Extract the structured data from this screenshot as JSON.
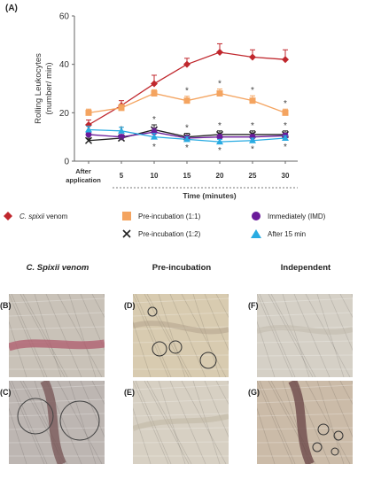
{
  "panel_a_label": "(A)",
  "chart_data": {
    "type": "line",
    "categories": [
      "After application",
      "5",
      "10",
      "15",
      "20",
      "25",
      "30"
    ],
    "xlabel": "Time (minutes)",
    "ylabel_line1": "Rolling Leukocytes",
    "ylabel_line2": "(number/ min)",
    "ylim": [
      0,
      60
    ],
    "yticks": [
      "0",
      "20",
      "40",
      "60"
    ],
    "significance_marker": "*",
    "series": [
      {
        "name": "C. spixii venom",
        "name_prefix": "C. spixii",
        "name_suffix": " venom",
        "color": "#c0272d",
        "marker": "diamond",
        "values": [
          15,
          23,
          32,
          40,
          45,
          43,
          42
        ],
        "errors": [
          2,
          2,
          3.5,
          2.5,
          3.5,
          3,
          4
        ],
        "sig": [
          false,
          false,
          false,
          false,
          false,
          false,
          false
        ]
      },
      {
        "name": "Pre-incubation (1:1)",
        "color": "#f4a460",
        "marker": "square",
        "values": [
          20,
          22,
          28,
          25,
          28,
          25,
          20
        ],
        "errors": [
          1.5,
          1.5,
          1.5,
          1.8,
          1.8,
          2,
          1.5
        ],
        "sig": [
          false,
          false,
          false,
          true,
          true,
          true,
          true
        ]
      },
      {
        "name": "Pre-incubation (1:2)",
        "color": "#222222",
        "marker": "x",
        "values": [
          8.5,
          9.5,
          13,
          10,
          11,
          11,
          11
        ],
        "errors": [
          1,
          1.5,
          2,
          1.5,
          1.5,
          1.5,
          1.5
        ],
        "sig": [
          true,
          true,
          true,
          true,
          true,
          true,
          true
        ]
      },
      {
        "name": "Immediately (IMD)",
        "color": "#6a1b9a",
        "marker": "circle",
        "values": [
          11,
          10,
          12,
          9.5,
          10,
          10,
          10.5
        ],
        "errors": [
          1,
          1,
          1.5,
          1,
          1,
          1,
          1
        ],
        "sig": [
          false,
          false,
          false,
          false,
          false,
          false,
          false
        ]
      },
      {
        "name": "After 15 min",
        "color": "#29abe2",
        "marker": "triangle",
        "values": [
          13,
          12.5,
          10,
          9,
          8,
          8.5,
          9.5
        ],
        "errors": [
          1.5,
          1.5,
          1.5,
          1,
          1,
          1,
          1
        ],
        "sig": [
          false,
          true,
          true,
          true,
          true,
          true,
          true
        ]
      }
    ]
  },
  "micrographs": {
    "columns": [
      "C. Spixii venom",
      "Pre-incubation",
      "Independent"
    ],
    "panels": [
      {
        "tag": "(B)",
        "tone": "#c9c2b8",
        "vessel": "#b06070"
      },
      {
        "tag": "(D)",
        "tone": "#d8cbb0",
        "vessel": "#b0a08a"
      },
      {
        "tag": "(F)",
        "tone": "#d5d0c6",
        "vessel": "#c0b8aa"
      },
      {
        "tag": "(C)",
        "tone": "#bdb6b2",
        "vessel": "#7a5a5a"
      },
      {
        "tag": "(E)",
        "tone": "#d7d0c3",
        "vessel": "#bdb39f"
      },
      {
        "tag": "(G)",
        "tone": "#cbbba8",
        "vessel": "#6d4a4a"
      }
    ]
  }
}
